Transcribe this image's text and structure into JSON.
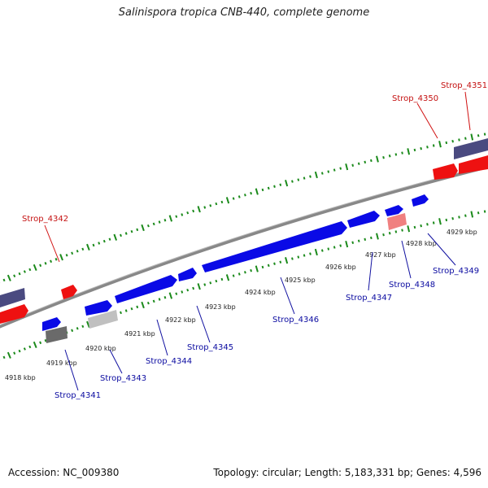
{
  "title": "Salinispora tropica CNB-440, complete genome",
  "footer": {
    "accession": "Accession: NC_009380",
    "summary": "Topology: circular; Length: 5,183,331 bp; Genes: 4,596"
  },
  "colors": {
    "forward_cds": "#0a0ae6",
    "reverse_cds": "#ee1111",
    "forward_label": "#0a0aa0",
    "reverse_label": "#c41010",
    "backbone": "#888888",
    "tick": "#1b8a1b",
    "rna_fwd": "#4a4a80",
    "pseudo": "#f08080",
    "gray_feature": "#c0c0c0",
    "dark_feature": "#6a6a6a"
  },
  "scale_labels": [
    {
      "text": "4918 kbp"
    },
    {
      "text": "4919 kbp"
    },
    {
      "text": "4920 kbp"
    },
    {
      "text": "4921 kbp"
    },
    {
      "text": "4922 kbp"
    },
    {
      "text": "4923 kbp"
    },
    {
      "text": "4924 kbp"
    },
    {
      "text": "4925 kbp"
    },
    {
      "text": "4926 kbp"
    },
    {
      "text": "4927 kbp"
    },
    {
      "text": "4928 kbp"
    },
    {
      "text": "4929 kbp"
    }
  ],
  "genes": [
    {
      "name": "Strop_4341",
      "strand": "forward"
    },
    {
      "name": "Strop_4342",
      "strand": "reverse"
    },
    {
      "name": "Strop_4343",
      "strand": "forward"
    },
    {
      "name": "Strop_4344",
      "strand": "forward"
    },
    {
      "name": "Strop_4345",
      "strand": "forward"
    },
    {
      "name": "Strop_4346",
      "strand": "forward"
    },
    {
      "name": "Strop_4347",
      "strand": "forward"
    },
    {
      "name": "Strop_4348",
      "strand": "forward"
    },
    {
      "name": "Strop_4349",
      "strand": "forward"
    },
    {
      "name": "Strop_4350",
      "strand": "reverse"
    },
    {
      "name": "Strop_4351",
      "strand": "reverse"
    }
  ]
}
